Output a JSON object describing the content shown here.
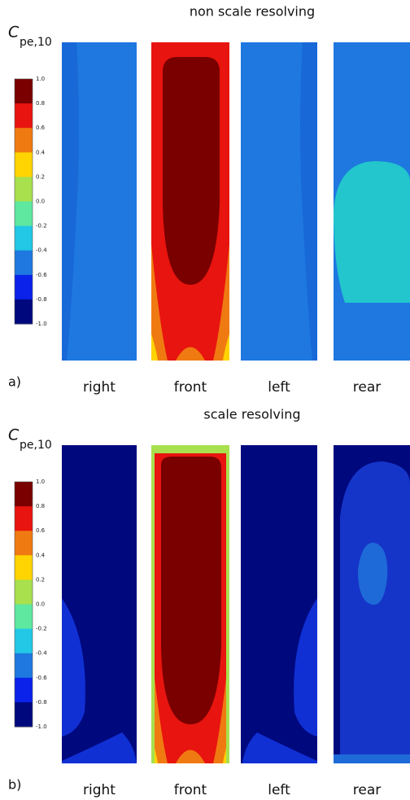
{
  "panels": [
    {
      "title": "non scale resolving",
      "tag": "a)",
      "symbol": "C",
      "subscript": "pe,10",
      "colorbar_ticks": [
        "1.0",
        "0.8",
        "0.6",
        "0.4",
        "0.2",
        "0.0",
        "-0.2",
        "-0.4",
        "-0.6",
        "-0.8",
        "-1.0"
      ],
      "faces": [
        "right",
        "front",
        "left",
        "rear"
      ]
    },
    {
      "title": "scale resolving",
      "tag": "b)",
      "symbol": "C",
      "subscript": "pe,10",
      "colorbar_ticks": [
        "1.0",
        "0.8",
        "0.6",
        "0.4",
        "0.2",
        "0.0",
        "-0.2",
        "-0.4",
        "-0.6",
        "-0.8",
        "-1.0"
      ],
      "faces": [
        "right",
        "front",
        "left",
        "rear"
      ]
    }
  ],
  "colorbar_colors": [
    "#7a0000",
    "#e8140f",
    "#f07a12",
    "#ffd400",
    "#a8e04e",
    "#5ee8a0",
    "#22c8e6",
    "#1e78e0",
    "#0a22ea",
    "#00087e"
  ]
}
